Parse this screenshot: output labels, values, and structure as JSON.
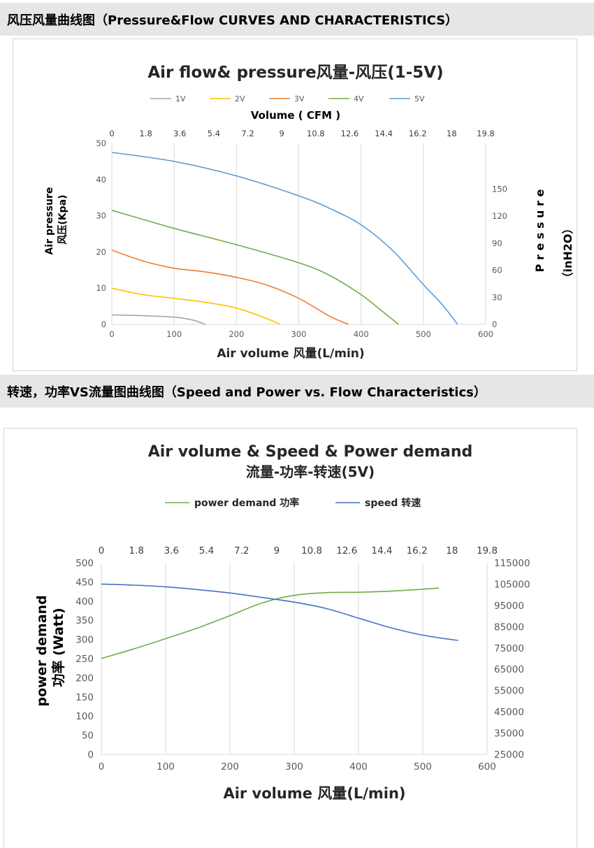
{
  "sections": {
    "pressure_flow": "风压风量曲线图（Pressure&Flow CURVES AND CHARACTERISTICS）",
    "speed_power": "转速，功率VS流量图曲线图（Speed and Power vs. Flow Characteristics）"
  },
  "chart_data": [
    {
      "type": "line",
      "title": "Air flow& pressure风量-风压(1-5V)",
      "top_axis_title": "Volume ( CFM )",
      "top_ticks": [
        "0",
        "1.8",
        "3.6",
        "5.4",
        "7.2",
        "9",
        "10.8",
        "12.6",
        "14.4",
        "16.2",
        "18",
        "19.8"
      ],
      "xlabel": "Air volume 风量(L/min)",
      "xlim": [
        0,
        600
      ],
      "x_ticks": [
        0,
        100,
        200,
        300,
        400,
        500,
        600
      ],
      "ylabel_line1": "Air pressure",
      "ylabel_line2": "风压(Kpa)",
      "ylim": [
        0,
        50
      ],
      "y_ticks": [
        0,
        10,
        20,
        30,
        40,
        50
      ],
      "y2label_line1": "P r e s s u r e",
      "y2label_line2": "（inH2O）",
      "y2lim": [
        0,
        200.7
      ],
      "y2_ticks": [
        0,
        30,
        60,
        90,
        120,
        150
      ],
      "grid": "vertical",
      "legend_position": "top",
      "series": [
        {
          "name": "1V",
          "color": "#a5a5a5",
          "x": [
            0,
            50,
            100,
            130,
            150
          ],
          "y": [
            2.6,
            2.4,
            2.0,
            1.2,
            0
          ]
        },
        {
          "name": "2V",
          "color": "#ffc000",
          "x": [
            0,
            50,
            100,
            150,
            200,
            250,
            270
          ],
          "y": [
            10,
            8.2,
            7.2,
            6.1,
            4.5,
            1.5,
            0
          ]
        },
        {
          "name": "3V",
          "color": "#ed7d31",
          "x": [
            0,
            50,
            100,
            150,
            200,
            250,
            300,
            350,
            380
          ],
          "y": [
            20.5,
            17.5,
            15.5,
            14.5,
            13,
            10.8,
            7.2,
            2.2,
            0
          ]
        },
        {
          "name": "4V",
          "color": "#70ad47",
          "x": [
            0,
            100,
            200,
            300,
            350,
            400,
            430,
            460
          ],
          "y": [
            31.5,
            26.5,
            22,
            17,
            13.5,
            8.2,
            4.2,
            0
          ]
        },
        {
          "name": "5V",
          "color": "#5b9bd5",
          "x": [
            0,
            100,
            200,
            300,
            350,
            400,
            450,
            500,
            530,
            555
          ],
          "y": [
            47.5,
            45,
            41,
            35.5,
            32,
            27.5,
            20.5,
            11,
            5.5,
            0
          ]
        }
      ]
    },
    {
      "type": "line",
      "title_line1": "Air volume  &  Speed  &  Power demand",
      "title_line2": "流量-功率-转速(5V)",
      "top_ticks": [
        "0",
        "1.8",
        "3.6",
        "5.4",
        "7.2",
        "9",
        "10.8",
        "12.6",
        "14.4",
        "16.2",
        "18",
        "19.8"
      ],
      "xlabel": "Air volume 风量(L/min)",
      "xlim": [
        0,
        600
      ],
      "x_ticks": [
        0,
        100,
        200,
        300,
        400,
        500,
        600
      ],
      "ylabel_line1": "power demand",
      "ylabel_line2": "功率 (Watt)",
      "ylim": [
        0,
        500
      ],
      "y_ticks": [
        0,
        50,
        100,
        150,
        200,
        250,
        300,
        350,
        400,
        450,
        500
      ],
      "y2lim": [
        25000,
        115000
      ],
      "y2_ticks": [
        25000,
        35000,
        45000,
        55000,
        65000,
        75000,
        85000,
        95000,
        105000,
        115000
      ],
      "grid": "vertical",
      "legend_position": "top",
      "series": [
        {
          "name": "power demand 功率",
          "axis": "left",
          "color": "#70ad47",
          "x": [
            0,
            50,
            100,
            150,
            200,
            250,
            300,
            350,
            400,
            450,
            500,
            525
          ],
          "y": [
            250,
            275,
            302,
            330,
            362,
            395,
            415,
            422,
            423,
            426,
            431,
            434
          ]
        },
        {
          "name": "speed 转速",
          "axis": "right",
          "color": "#4472c4",
          "x": [
            0,
            50,
            100,
            150,
            200,
            250,
            300,
            350,
            400,
            450,
            500,
            555
          ],
          "y": [
            105000,
            104500,
            103700,
            102400,
            100800,
            98700,
            96500,
            93500,
            89000,
            84500,
            81000,
            78500
          ]
        }
      ]
    }
  ]
}
